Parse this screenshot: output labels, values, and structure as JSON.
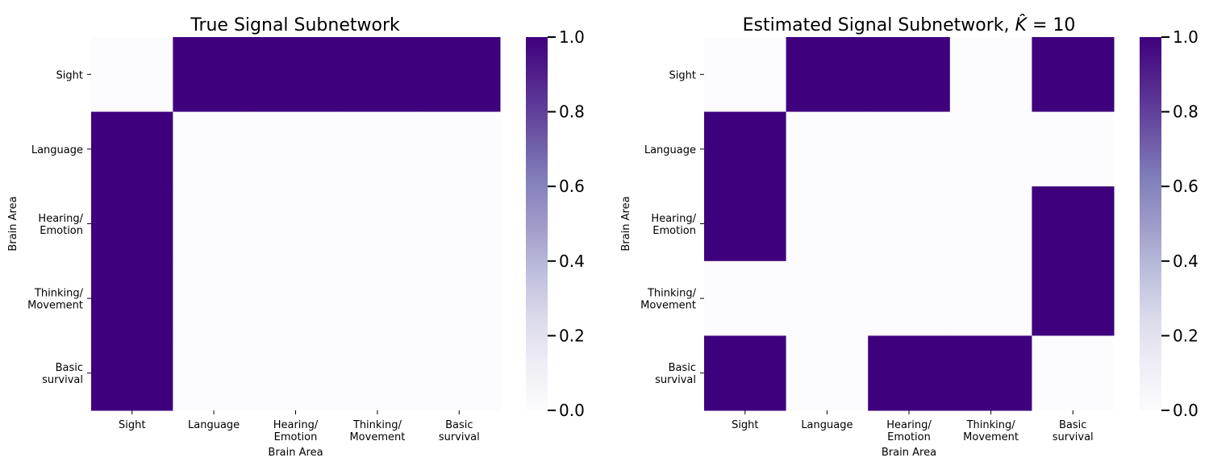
{
  "chart_data": [
    {
      "type": "heatmap",
      "title": "True Signal Subnetwork",
      "xlabel": "Brain Area",
      "ylabel": "Brain Area",
      "categories": [
        "Sight",
        "Language",
        "Hearing/\nEmotion",
        "Thinking/\nMovement",
        "Basic\nsurvival"
      ],
      "values": [
        [
          0,
          1,
          1,
          1,
          1
        ],
        [
          1,
          0,
          0,
          0,
          0
        ],
        [
          1,
          0,
          0,
          0,
          0
        ],
        [
          1,
          0,
          0,
          0,
          0
        ],
        [
          1,
          0,
          0,
          0,
          0
        ]
      ],
      "colorbar": {
        "vmin": 0.0,
        "vmax": 1.0,
        "ticks": [
          "0.0",
          "0.2",
          "0.4",
          "0.6",
          "0.8",
          "1.0"
        ],
        "cmap": "Purples"
      }
    },
    {
      "type": "heatmap",
      "title": "Estimated Signal Subnetwork, K̂ = 10",
      "xlabel": "Brain Area",
      "ylabel": "Brain Area",
      "categories": [
        "Sight",
        "Language",
        "Hearing/\nEmotion",
        "Thinking/\nMovement",
        "Basic\nsurvival"
      ],
      "values": [
        [
          0,
          1,
          1,
          0,
          1
        ],
        [
          1,
          0,
          0,
          0,
          0
        ],
        [
          1,
          0,
          0,
          0,
          1
        ],
        [
          0,
          0,
          0,
          0,
          1
        ],
        [
          1,
          0,
          1,
          1,
          0
        ]
      ],
      "colorbar": {
        "vmin": 0.0,
        "vmax": 1.0,
        "ticks": [
          "0.0",
          "0.2",
          "0.4",
          "0.6",
          "0.8",
          "1.0"
        ],
        "cmap": "Purples"
      }
    }
  ],
  "colors": {
    "low": "#fcfbfd",
    "high": "#3f007d"
  }
}
